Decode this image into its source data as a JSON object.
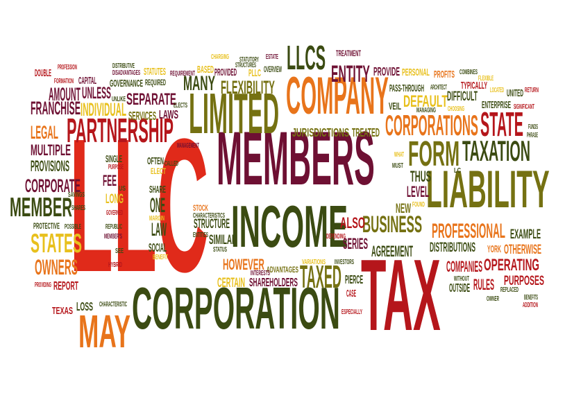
{
  "colors": {
    "red": "#e02a1a",
    "dark_red": "#b5161b",
    "maroon": "#6e1033",
    "orange": "#e8741b",
    "yellow": "#e8c01d",
    "olive": "#757112",
    "dark_green": "#3b4b12"
  },
  "words": [
    {
      "text": "LLC",
      "color": "red"
    },
    {
      "text": "TAX",
      "color": "dark_red"
    },
    {
      "text": "MEMBERS",
      "color": "maroon"
    },
    {
      "text": "CORPORATION",
      "color": "dark_green"
    },
    {
      "text": "LIABILITY",
      "color": "olive"
    },
    {
      "text": "INCOME",
      "color": "dark_green"
    },
    {
      "text": "LIMITED",
      "color": "olive"
    },
    {
      "text": "COMPANY",
      "color": "orange"
    },
    {
      "text": "PARTNERSHIP",
      "color": "dark_red"
    },
    {
      "text": "MAY",
      "color": "orange"
    },
    {
      "text": "CORPORATIONS",
      "color": "orange"
    },
    {
      "text": "STATE",
      "color": "dark_red"
    },
    {
      "text": "FORM",
      "color": "olive"
    },
    {
      "text": "TAXATION",
      "color": "dark_green"
    },
    {
      "text": "LLCS",
      "color": "dark_green"
    },
    {
      "text": "ENTITY",
      "color": "maroon"
    },
    {
      "text": "BUSINESS",
      "color": "olive"
    },
    {
      "text": "PROFESSIONAL",
      "color": "orange"
    },
    {
      "text": "STATES",
      "color": "yellow"
    },
    {
      "text": "OWNERS",
      "color": "orange"
    },
    {
      "text": "MEMBER",
      "color": "dark_green"
    },
    {
      "text": "CORPORATE",
      "color": "maroon"
    },
    {
      "text": "TAXED",
      "color": "olive"
    },
    {
      "text": "FLEXIBILITY",
      "color": "olive"
    },
    {
      "text": "MANY",
      "color": "dark_green"
    },
    {
      "text": "SEPARATE",
      "color": "maroon"
    },
    {
      "text": "AMOUNT",
      "color": "maroon"
    },
    {
      "text": "UNLESS",
      "color": "maroon"
    },
    {
      "text": "FRANCHISE",
      "color": "maroon"
    },
    {
      "text": "INDIVIDUAL",
      "color": "yellow"
    },
    {
      "text": "LEGAL",
      "color": "orange"
    },
    {
      "text": "MULTIPLE",
      "color": "maroon"
    },
    {
      "text": "PROVISIONS",
      "color": "dark_green"
    },
    {
      "text": "FEE",
      "color": "maroon"
    },
    {
      "text": "ONE",
      "color": "dark_green"
    },
    {
      "text": "LAW",
      "color": "dark_green"
    },
    {
      "text": "LONG",
      "color": "yellow"
    },
    {
      "text": "SOCIAL",
      "color": "dark_green"
    },
    {
      "text": "STRUCTURE",
      "color": "dark_green"
    },
    {
      "text": "SIMILAR",
      "color": "dark_green"
    },
    {
      "text": "HOWEVER",
      "color": "orange"
    },
    {
      "text": "ADVANTAGES",
      "color": "olive"
    },
    {
      "text": "CERTAIN",
      "color": "yellow"
    },
    {
      "text": "SHAREHOLDERS",
      "color": "maroon"
    },
    {
      "text": "SERIES",
      "color": "maroon"
    },
    {
      "text": "AGREEMENT",
      "color": "dark_green"
    },
    {
      "text": "ALSO",
      "color": "dark_red"
    },
    {
      "text": "NEW",
      "color": "olive"
    },
    {
      "text": "LEVEL",
      "color": "maroon"
    },
    {
      "text": "THUS",
      "color": "dark_green"
    },
    {
      "text": "DISTRIBUTIONS",
      "color": "dark_green"
    },
    {
      "text": "COMPANIES",
      "color": "dark_red"
    },
    {
      "text": "OPERATING",
      "color": "dark_red"
    },
    {
      "text": "RULES",
      "color": "dark_red"
    },
    {
      "text": "PURPOSES",
      "color": "dark_red"
    },
    {
      "text": "EXAMPLE",
      "color": "dark_green"
    },
    {
      "text": "OTHERWISE",
      "color": "orange"
    },
    {
      "text": "YORK",
      "color": "orange"
    },
    {
      "text": "OUTSIDE",
      "color": "dark_green"
    },
    {
      "text": "PIERCE",
      "color": "dark_green"
    },
    {
      "text": "CASE",
      "color": "dark_red"
    },
    {
      "text": "JURISDICTIONS",
      "color": "olive"
    },
    {
      "text": "TREATED",
      "color": "olive"
    },
    {
      "text": "DEFAULT",
      "color": "yellow"
    },
    {
      "text": "VEIL",
      "color": "dark_green"
    },
    {
      "text": "PASS-THROUGH",
      "color": "dark_green"
    },
    {
      "text": "PROVIDE",
      "color": "maroon"
    },
    {
      "text": "PERSONAL",
      "color": "yellow"
    },
    {
      "text": "PROFITS",
      "color": "orange"
    },
    {
      "text": "TYPICALLY",
      "color": "dark_red"
    },
    {
      "text": "DIFFICULT",
      "color": "dark_green"
    },
    {
      "text": "UNITED",
      "color": "dark_green"
    },
    {
      "text": "ENTERPRISE",
      "color": "dark_green"
    },
    {
      "text": "TREATMENT",
      "color": "maroon"
    },
    {
      "text": "DOUBLE",
      "color": "dark_red"
    },
    {
      "text": "CAPITAL",
      "color": "maroon"
    },
    {
      "text": "GOVERNANCE",
      "color": "dark_green"
    },
    {
      "text": "STATUTES",
      "color": "yellow"
    },
    {
      "text": "BASED",
      "color": "yellow"
    },
    {
      "text": "PROVIDED",
      "color": "maroon"
    },
    {
      "text": "SERVICES",
      "color": "olive"
    },
    {
      "text": "LAWS",
      "color": "maroon"
    },
    {
      "text": "REQUIRED",
      "color": "dark_green"
    },
    {
      "text": "PLLC",
      "color": "yellow"
    },
    {
      "text": "OVERVIEW",
      "color": "dark_green"
    },
    {
      "text": "SINGLE",
      "color": "dark_green"
    },
    {
      "text": "OFTEN",
      "color": "dark_green"
    },
    {
      "text": "ELECT",
      "color": "yellow"
    },
    {
      "text": "SHARE",
      "color": "dark_green"
    },
    {
      "text": "PROTECTIVE",
      "color": "dark_green"
    },
    {
      "text": "REPORT",
      "color": "dark_red"
    },
    {
      "text": "LOSS",
      "color": "dark_green"
    },
    {
      "text": "TEXAS",
      "color": "dark_red"
    },
    {
      "text": "STOCK",
      "color": "orange"
    },
    {
      "text": "PROFESSION",
      "color": "dark_red"
    },
    {
      "text": "FORMATION",
      "color": "dark_red"
    },
    {
      "text": "DISTRIBUTIVE",
      "color": "dark_green"
    },
    {
      "text": "DISADVANTAGES",
      "color": "maroon"
    },
    {
      "text": "CHARGING",
      "color": "yellow"
    },
    {
      "text": "STATUTORY",
      "color": "dark_green"
    },
    {
      "text": "ESTATE",
      "color": "maroon"
    },
    {
      "text": "STRUCTURES",
      "color": "dark_green"
    },
    {
      "text": "REQUIREMENT",
      "color": "maroon"
    },
    {
      "text": "COMBINES",
      "color": "dark_green"
    },
    {
      "text": "FLEXIBLE",
      "color": "yellow"
    },
    {
      "text": "ARCHITECT",
      "color": "dark_green"
    },
    {
      "text": "LOCATED",
      "color": "yellow"
    },
    {
      "text": "RETURN",
      "color": "dark_red"
    },
    {
      "text": "SIGNIFICANT",
      "color": "dark_red"
    },
    {
      "text": "CHOOSING",
      "color": "yellow"
    },
    {
      "text": "FOUND",
      "color": "yellow"
    },
    {
      "text": "FUNDS",
      "color": "dark_green"
    },
    {
      "text": "PHRASE",
      "color": "dark_green"
    },
    {
      "text": "CALLED",
      "color": "dark_green"
    },
    {
      "text": "ELECTS",
      "color": "dark_green"
    },
    {
      "text": "UNLIKE",
      "color": "dark_green"
    },
    {
      "text": "MANAGEMENT",
      "color": "maroon"
    },
    {
      "text": "MUST",
      "color": "dark_green"
    },
    {
      "text": "WHAT",
      "color": "yellow"
    },
    {
      "text": "MANAGING",
      "color": "dark_green"
    },
    {
      "text": "PURPOSE",
      "color": "dark_red"
    },
    {
      "text": "SAVINGS",
      "color": "dark_green"
    },
    {
      "text": "SHARES",
      "color": "dark_green"
    },
    {
      "text": "POSSIBLE",
      "color": "dark_green"
    },
    {
      "text": "GOVERNED",
      "color": "dark_red"
    },
    {
      "text": "REPUBLIC",
      "color": "dark_green"
    },
    {
      "text": "MEMBER'S",
      "color": "maroon"
    },
    {
      "text": "SEE",
      "color": "dark_green"
    },
    {
      "text": "HYBRID",
      "color": "dark_red"
    },
    {
      "text": "MARGIN",
      "color": "yellow"
    },
    {
      "text": "BENEFIT",
      "color": "yellow"
    },
    {
      "text": "CHARACTERISTICS",
      "color": "dark_green"
    },
    {
      "text": "ENTITIES",
      "color": "dark_green"
    },
    {
      "text": "STATUS",
      "color": "dark_green"
    },
    {
      "text": "DEPENDING",
      "color": "dark_red"
    },
    {
      "text": "VARIATIONS",
      "color": "yellow"
    },
    {
      "text": "INTERESTS",
      "color": "maroon"
    },
    {
      "text": "INVESTORS",
      "color": "dark_green"
    },
    {
      "text": "ESPECIALLY",
      "color": "dark_red"
    },
    {
      "text": "CHARACTERISTIC",
      "color": "dark_green"
    },
    {
      "text": "PROVIDING",
      "color": "dark_red"
    },
    {
      "text": "WITHOUT",
      "color": "dark_green"
    },
    {
      "text": "OWNER",
      "color": "dark_green"
    },
    {
      "text": "REPLACED",
      "color": "dark_green"
    },
    {
      "text": "BENEFITS",
      "color": "dark_green"
    },
    {
      "text": "ADDITION",
      "color": "dark_red"
    },
    {
      "text": "US",
      "color": "dark_green"
    },
    {
      "text": "LC",
      "color": "dark_green"
    }
  ]
}
